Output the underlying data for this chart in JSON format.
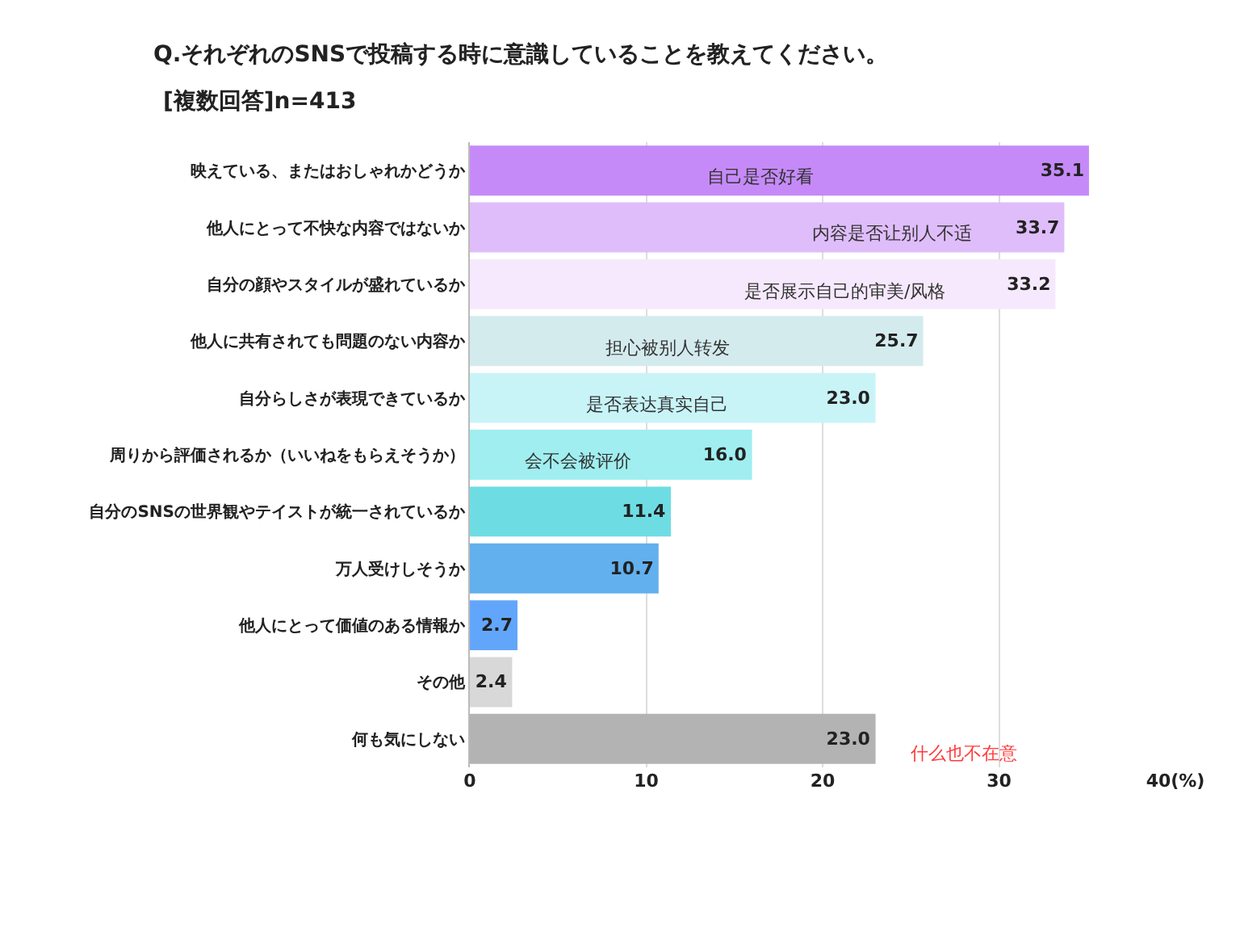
{
  "chart_data": {
    "type": "bar",
    "orientation": "horizontal",
    "title": "Q.それぞれのSNSで投稿する時に意識していることを教えてください。",
    "subtitle": "[複数回答]n=413",
    "categories": [
      "映えている、またはおしゃれかどうか",
      "他人にとって不快な内容ではないか",
      "自分の顔やスタイルが盛れているか",
      "他人に共有されても問題のない内容か",
      "自分らしさが表現できているか",
      "周りから評価されるか（いいねをもらえそうか）",
      "自分のSNSの世界観やテイストが統一されているか",
      "万人受けしそうか",
      "他人にとって価値のある情報か",
      "その他",
      "何も気にしない"
    ],
    "values": [
      35.1,
      33.7,
      33.2,
      25.7,
      23.0,
      16.0,
      11.4,
      10.7,
      2.7,
      2.4,
      23.0
    ],
    "value_labels": [
      "35.1",
      "33.7",
      "33.2",
      "25.7",
      "23.0",
      "16.0",
      "11.4",
      "10.7",
      "2.7",
      "2.4",
      "23.0"
    ],
    "colors": [
      "#c58af8",
      "#dfbdfa",
      "#f6e9fd",
      "#d4ebee",
      "#c8f4f8",
      "#a0eef0",
      "#6edde3",
      "#62b0ee",
      "#62a6fb",
      "#d8d8d8",
      "#b3b3b3"
    ],
    "xlim": [
      0,
      40
    ],
    "xticks": [
      0,
      10,
      20,
      30,
      {
        "value": 40,
        "label": "40(%)"
      }
    ],
    "grid": "x",
    "legend": false,
    "annotations": [
      {
        "text": "自己是否好看",
        "x": 16.5,
        "y": "映えている、またはおしゃれかどうか"
      },
      {
        "text": "内容是否让别人不适",
        "x": 23.9,
        "y": "他人にとって不快な内容ではないか"
      },
      {
        "text": "是否展示自己的审美/风格",
        "x": 21.3,
        "y": "自分の顔やスタイルが盛れているか"
      },
      {
        "text": "担心被别人转发",
        "x": 11.2,
        "y": "他人に共有されても問題のない内容か"
      },
      {
        "text": "是否表达真实自己",
        "x": 10.6,
        "y": "自分らしさが表現できているか"
      },
      {
        "text": "会不会被评价",
        "x": 6.1,
        "y": "周りから評価されるか（いいねをもらえそうか）"
      },
      "什么也不在意"
    ]
  }
}
